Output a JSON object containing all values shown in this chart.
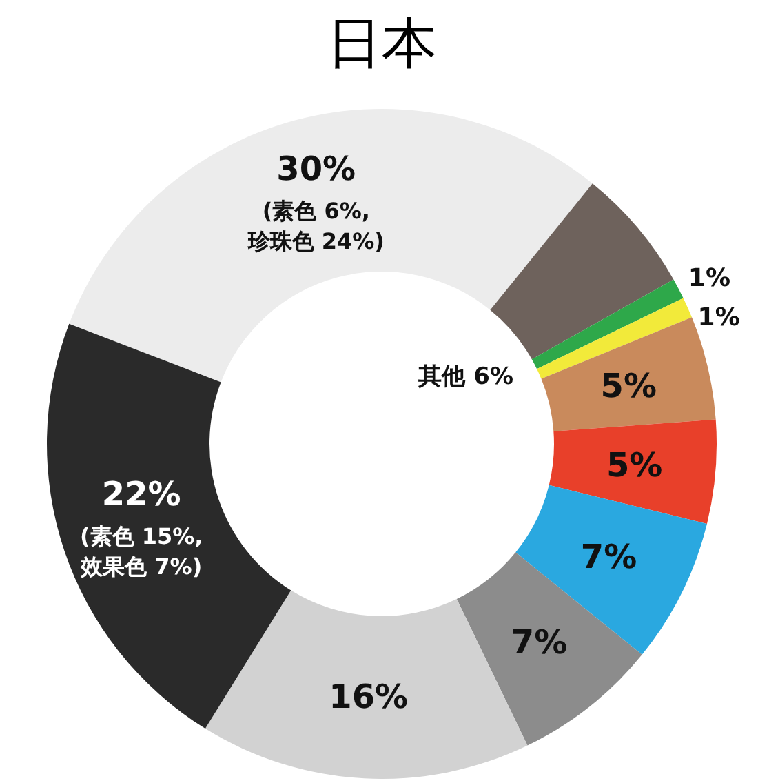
{
  "chart_data": {
    "type": "donut",
    "title": "日本",
    "categories": [
      null,
      "其他",
      null,
      null,
      null,
      null,
      null,
      null,
      null,
      null
    ],
    "values": [
      30,
      6,
      1,
      1,
      5,
      5,
      7,
      7,
      16,
      22
    ],
    "colors": [
      "#ececec",
      "#6e625c",
      "#2ea84a",
      "#f2ea3a",
      "#c98a5c",
      "#e8402a",
      "#2aa8e0",
      "#8c8c8c",
      "#d2d2d2",
      "#2a2a2a"
    ],
    "value_labels": [
      "30%\n(素色 6%,\n珍珠色 24%)",
      "6%",
      "1%",
      "1%",
      "5%",
      "5%",
      "7%",
      "7%",
      "16%",
      "22%\n(素色 15%,\n效果色 7%)"
    ]
  }
}
